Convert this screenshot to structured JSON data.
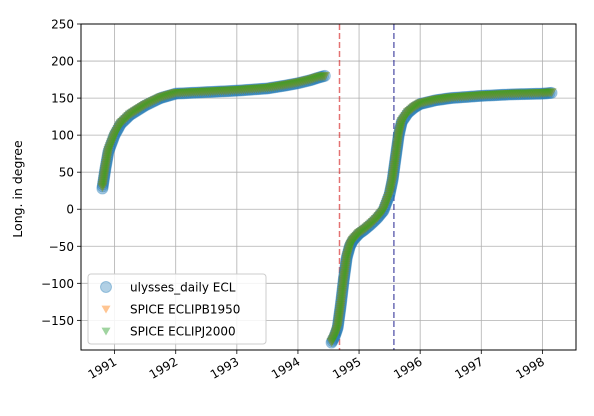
{
  "chart_data": {
    "type": "scatter",
    "ylabel": "Long. in degree",
    "xlim": [
      1990.45,
      1998.55
    ],
    "ylim": [
      -190,
      250
    ],
    "grid": true,
    "legend_position": "lower-left",
    "x_ticks": [
      1991,
      1992,
      1993,
      1994,
      1995,
      1996,
      1997,
      1998
    ],
    "x_tick_labels": [
      "1991",
      "1992",
      "1993",
      "1994",
      "1995",
      "1996",
      "1997",
      "1998"
    ],
    "y_ticks": [
      -150,
      -100,
      -50,
      0,
      50,
      100,
      150,
      200,
      250
    ],
    "y_tick_labels": [
      "−150",
      "−100",
      "−50",
      "0",
      "50",
      "100",
      "150",
      "200",
      "250"
    ],
    "vlines": [
      {
        "x": 1994.68,
        "color": "#d62728"
      },
      {
        "x": 1995.57,
        "color": "#1f1f8f"
      }
    ],
    "series": [
      {
        "name": "ulysses_daily ECL",
        "marker": "circle",
        "color": "#1f77b4",
        "alpha": 0.35,
        "x": [
          1990.8,
          1990.85,
          1990.9,
          1991.0,
          1991.1,
          1991.25,
          1991.5,
          1991.75,
          1992.0,
          1992.5,
          1993.0,
          1993.5,
          1993.8,
          1994.0,
          1994.2,
          1994.35,
          1994.44,
          1994.55,
          1994.6,
          1994.65,
          1994.7,
          1994.75,
          1994.8,
          1994.85,
          1994.9,
          1995.0,
          1995.1,
          1995.2,
          1995.3,
          1995.4,
          1995.5,
          1995.55,
          1995.6,
          1995.65,
          1995.7,
          1995.8,
          1995.9,
          1996.0,
          1996.25,
          1996.5,
          1997.0,
          1997.5,
          1998.0,
          1998.15
        ],
        "y": [
          28,
          55,
          78,
          100,
          115,
          127,
          140,
          150,
          156,
          158,
          160,
          163,
          167,
          170,
          174,
          178,
          180,
          -180,
          -172,
          -160,
          -130,
          -95,
          -65,
          -50,
          -42,
          -33,
          -27,
          -20,
          -12,
          -2,
          20,
          40,
          70,
          100,
          118,
          130,
          137,
          142,
          147,
          150,
          153,
          155,
          156,
          157
        ]
      },
      {
        "name": "SPICE ECLIPB1950",
        "marker": "triangle-down",
        "color": "#ff7f0e",
        "alpha": 0.35,
        "x": [
          1990.8,
          1990.85,
          1990.9,
          1991.0,
          1991.1,
          1991.25,
          1991.5,
          1991.75,
          1992.0,
          1992.5,
          1993.0,
          1993.5,
          1993.8,
          1994.0,
          1994.2,
          1994.35,
          1994.44,
          1994.55,
          1994.6,
          1994.65,
          1994.7,
          1994.75,
          1994.8,
          1994.85,
          1994.9,
          1995.0,
          1995.1,
          1995.2,
          1995.3,
          1995.4,
          1995.5,
          1995.55,
          1995.6,
          1995.65,
          1995.7,
          1995.8,
          1995.9,
          1996.0,
          1996.25,
          1996.5,
          1997.0,
          1997.5,
          1998.0,
          1998.15
        ],
        "y": [
          30,
          57,
          80,
          101,
          116,
          128,
          141,
          151,
          157,
          159,
          161,
          164,
          168,
          171,
          175,
          179,
          180,
          -179,
          -171,
          -159,
          -129,
          -94,
          -64,
          -49,
          -41,
          -32,
          -26,
          -19,
          -11,
          -1,
          21,
          41,
          71,
          101,
          119,
          131,
          138,
          143,
          148,
          151,
          154,
          156,
          157,
          158
        ]
      },
      {
        "name": "SPICE ECLIPJ2000",
        "marker": "triangle-down",
        "color": "#2ca02c",
        "alpha": 0.35,
        "x": [
          1990.8,
          1990.85,
          1990.9,
          1991.0,
          1991.1,
          1991.25,
          1991.5,
          1991.75,
          1992.0,
          1992.5,
          1993.0,
          1993.5,
          1993.8,
          1994.0,
          1994.2,
          1994.35,
          1994.44,
          1994.55,
          1994.6,
          1994.65,
          1994.7,
          1994.75,
          1994.8,
          1994.85,
          1994.9,
          1995.0,
          1995.1,
          1995.2,
          1995.3,
          1995.4,
          1995.5,
          1995.55,
          1995.6,
          1995.65,
          1995.7,
          1995.8,
          1995.9,
          1996.0,
          1996.25,
          1996.5,
          1997.0,
          1997.5,
          1998.0,
          1998.15
        ],
        "y": [
          30,
          57,
          80,
          101,
          116,
          128,
          141,
          151,
          157,
          159,
          161,
          164,
          168,
          171,
          175,
          179,
          180,
          -179,
          -171,
          -159,
          -129,
          -94,
          -64,
          -49,
          -41,
          -32,
          -26,
          -19,
          -11,
          -1,
          21,
          41,
          71,
          101,
          119,
          131,
          138,
          143,
          148,
          151,
          154,
          156,
          157,
          158
        ]
      }
    ]
  }
}
